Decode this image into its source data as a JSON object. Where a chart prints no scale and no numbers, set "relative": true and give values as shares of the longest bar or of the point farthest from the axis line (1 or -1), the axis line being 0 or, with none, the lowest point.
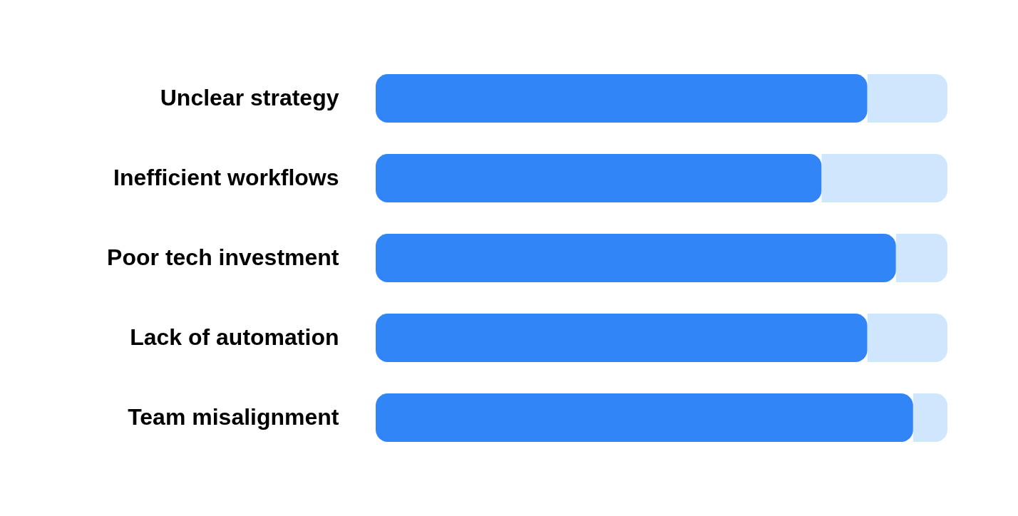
{
  "chart_data": {
    "type": "bar",
    "orientation": "horizontal",
    "stacked": true,
    "relative": true,
    "categories": [
      "Unclear strategy",
      "Inefficient workflows",
      "Poor tech investment",
      "Lack of automation",
      "Team misalignment"
    ],
    "series": [
      {
        "color": "#3185f7",
        "values": [
          0.86,
          0.78,
          0.91,
          0.86,
          0.94
        ]
      },
      {
        "color": "#cfe6fd",
        "values": [
          0.14,
          0.22,
          0.09,
          0.14,
          0.06
        ]
      }
    ]
  }
}
